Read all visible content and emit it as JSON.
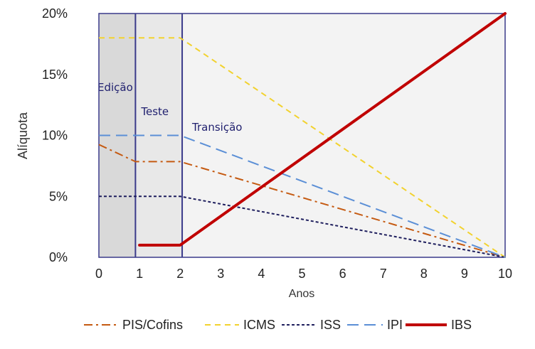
{
  "chart_data": {
    "type": "line",
    "xlabel": "Anos",
    "ylabel": "Alíquota",
    "xlim": [
      0,
      10
    ],
    "ylim": [
      0,
      20
    ],
    "x_ticks": [
      "0",
      "1",
      "2",
      "3",
      "4",
      "5",
      "6",
      "7",
      "8",
      "9",
      "10"
    ],
    "y_ticks": [
      "0%",
      "5%",
      "10%",
      "15%",
      "20%"
    ],
    "grid": false,
    "legend_position": "bottom",
    "phases": [
      {
        "label": "Edição",
        "x_start": 0,
        "x_end": 0.9,
        "color": "#d9d9d9"
      },
      {
        "label": "Teste",
        "x_start": 0.9,
        "x_end": 2.05,
        "color": "#e8e8e8"
      },
      {
        "label": "Transição",
        "x_start": 2.05,
        "x_end": 10,
        "color": "#f3f3f3"
      }
    ],
    "series": [
      {
        "name": "PIS/Cofins",
        "color": "#c55a11",
        "dash": "dashdot",
        "width": 2,
        "points": [
          [
            0,
            9.25
          ],
          [
            0.9,
            7.85
          ],
          [
            2,
            7.85
          ],
          [
            10,
            0
          ]
        ]
      },
      {
        "name": "ICMS",
        "color": "#f2d22e",
        "dash": "dash",
        "width": 2,
        "points": [
          [
            0,
            18
          ],
          [
            2,
            18
          ],
          [
            10,
            0
          ]
        ]
      },
      {
        "name": "ISS",
        "color": "#1f1f5e",
        "dash": "dot",
        "width": 2,
        "points": [
          [
            0,
            5
          ],
          [
            2,
            5
          ],
          [
            10,
            0
          ]
        ]
      },
      {
        "name": "IPI",
        "color": "#5b8fd6",
        "dash": "longdash",
        "width": 2,
        "points": [
          [
            0,
            10
          ],
          [
            2,
            10
          ],
          [
            10,
            0
          ]
        ]
      },
      {
        "name": "IBS",
        "color": "#c00000",
        "dash": "solid",
        "width": 4,
        "points": [
          [
            1,
            1
          ],
          [
            2,
            1
          ],
          [
            10,
            20
          ]
        ]
      }
    ]
  }
}
